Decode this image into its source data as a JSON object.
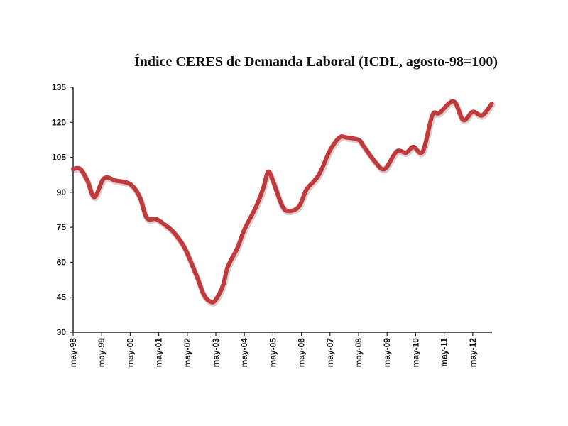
{
  "chart_data": {
    "type": "line",
    "title": "Índice CERES de Demanda Laboral (ICDL, agosto-98=100)",
    "xlabel": "",
    "ylabel": "",
    "ylim": [
      30,
      135
    ],
    "yticks": [
      30,
      45,
      60,
      75,
      90,
      105,
      120,
      135
    ],
    "xlim_months_since_may98": [
      0,
      176
    ],
    "xtick_labels": [
      "may-98",
      "may-99",
      "may-00",
      "may-01",
      "may-02",
      "may-03",
      "may-04",
      "may-05",
      "may-06",
      "may-07",
      "may-08",
      "may-09",
      "may-10",
      "may-11",
      "may-12"
    ],
    "grid": false,
    "legend": "none",
    "series": [
      {
        "name": "ICDL",
        "color": "#c0393b",
        "x_months_since_may98": [
          0,
          3,
          6,
          9,
          13,
          18,
          24,
          28,
          31,
          35,
          40,
          43,
          47,
          52,
          55,
          58,
          60,
          63,
          65,
          69,
          72,
          77,
          80,
          82,
          84,
          88,
          91,
          95,
          98,
          101,
          103,
          105,
          108,
          112,
          115,
          120,
          122,
          127,
          131,
          136,
          140,
          143,
          147,
          151,
          154,
          160,
          164,
          168,
          172,
          176
        ],
        "values": [
          100,
          100,
          95,
          88,
          96,
          95,
          93.5,
          88,
          79,
          78.5,
          75,
          72,
          66,
          54,
          46,
          43,
          44,
          50,
          58,
          66,
          74,
          84,
          92,
          98.8,
          95,
          84,
          82,
          84,
          91,
          94.5,
          97,
          101,
          108,
          113.5,
          113.5,
          112.5,
          110,
          103,
          100,
          107.5,
          107,
          109.5,
          107.5,
          123,
          124,
          129,
          121,
          124.5,
          123,
          128
        ]
      }
    ]
  }
}
